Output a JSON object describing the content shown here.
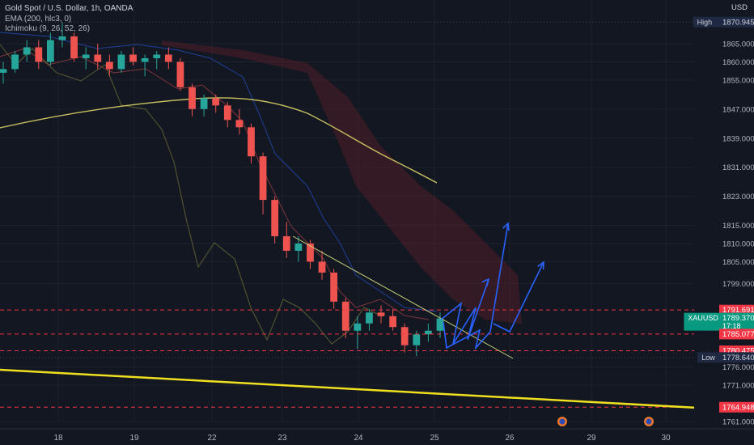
{
  "legend": {
    "symbol": "Gold Spot / U.S. Dollar, 1h, OANDA",
    "ema": "EMA (200, hlc3, 0)",
    "ichimoku": "Ichimoku (9, 26, 52, 26)"
  },
  "price_axis": {
    "unit": "USD",
    "ticks": [
      "1865.000",
      "1860.000",
      "1855.000",
      "1847.000",
      "1839.000",
      "1831.000",
      "1823.000",
      "1815.000",
      "1810.000",
      "1805.000",
      "1799.000",
      "1776.000",
      "1771.000",
      "1761.000"
    ]
  },
  "badges": [
    {
      "name": "high-label",
      "label": "High",
      "value": "1870.945",
      "color": "#1f2943",
      "text": "#d1d4dc"
    },
    {
      "name": "resistance-label",
      "label": "",
      "value": "1791.691",
      "color": "#f23645",
      "text": "#ffffff"
    },
    {
      "name": "symbol-price-label",
      "label": "XAUUSD",
      "value": "1789.370",
      "sub": "17:18",
      "color": "#089981",
      "text": "#ffffff"
    },
    {
      "name": "level-label",
      "label": "",
      "value": "1785.077",
      "color": "#f23645",
      "text": "#ffffff"
    },
    {
      "name": "support-label",
      "label": "",
      "value": "1780.475",
      "color": "#f23645",
      "text": "#ffffff"
    },
    {
      "name": "low-label",
      "label": "Low",
      "value": "1778.640",
      "color": "#1f2943",
      "text": "#d1d4dc"
    },
    {
      "name": "bottom-level-label",
      "label": "",
      "value": "1764.948",
      "color": "#f23645",
      "text": "#ffffff"
    }
  ],
  "time_axis": [
    "18",
    "19",
    "22",
    "23",
    "24",
    "25",
    "26",
    "29",
    "30"
  ],
  "colors": {
    "background": "#131722",
    "up": "#26a69a",
    "down": "#ef5350",
    "ema": "#c8c060",
    "trendline": "#f0e020",
    "projection": "#2962ff",
    "level": "#f23645",
    "cloud": "#5a1f28"
  },
  "chart_data": {
    "type": "candlestick",
    "title": "Gold Spot / U.S. Dollar, 1h, OANDA",
    "y_unit": "USD",
    "ylim": [
      1758,
      1878
    ],
    "x_ticks": [
      "18",
      "19",
      "22",
      "23",
      "24",
      "25",
      "26",
      "29",
      "30"
    ],
    "ohlc_approx": [
      [
        1857,
        1860,
        1854,
        1858
      ],
      [
        1858,
        1863,
        1857,
        1862
      ],
      [
        1862,
        1866,
        1860,
        1864
      ],
      [
        1864,
        1866,
        1858,
        1860
      ],
      [
        1860,
        1868,
        1859,
        1866
      ],
      [
        1866,
        1870.9,
        1864,
        1867
      ],
      [
        1867,
        1868,
        1860,
        1861
      ],
      [
        1861,
        1864,
        1858,
        1862
      ],
      [
        1862,
        1865,
        1858,
        1860
      ],
      [
        1860,
        1862,
        1856,
        1858
      ],
      [
        1858,
        1863,
        1857,
        1862
      ],
      [
        1862,
        1864,
        1859,
        1860
      ],
      [
        1860,
        1862,
        1856,
        1861
      ],
      [
        1861,
        1863,
        1858,
        1862
      ],
      [
        1862,
        1864,
        1858,
        1860
      ],
      [
        1860,
        1861,
        1852,
        1853
      ],
      [
        1853,
        1854,
        1845,
        1847
      ],
      [
        1847,
        1851,
        1845,
        1850
      ],
      [
        1850,
        1851,
        1846,
        1848
      ],
      [
        1848,
        1849,
        1842,
        1844
      ],
      [
        1844,
        1847,
        1840,
        1842
      ],
      [
        1842,
        1843,
        1832,
        1834
      ],
      [
        1834,
        1835,
        1818,
        1822
      ],
      [
        1822,
        1823,
        1810,
        1812
      ],
      [
        1812,
        1816,
        1806,
        1808
      ],
      [
        1808,
        1812,
        1805,
        1810
      ],
      [
        1810,
        1811,
        1803,
        1805
      ],
      [
        1805,
        1808,
        1800,
        1802
      ],
      [
        1802,
        1803,
        1792,
        1794
      ],
      [
        1794,
        1795,
        1784,
        1786
      ],
      [
        1786,
        1790,
        1781,
        1788
      ],
      [
        1788,
        1792,
        1786,
        1791
      ],
      [
        1791,
        1793,
        1788,
        1790
      ],
      [
        1790,
        1792,
        1786,
        1787
      ],
      [
        1787,
        1788,
        1780,
        1782
      ],
      [
        1782,
        1786,
        1779,
        1785
      ],
      [
        1785,
        1788,
        1783,
        1786
      ],
      [
        1786,
        1791,
        1784,
        1789.37
      ]
    ],
    "ema200": [
      1843,
      1846,
      1849,
      1848,
      1842,
      1828
    ],
    "levels": [
      1791.691,
      1785.077,
      1780.475,
      1764.948
    ],
    "high": 1870.945,
    "low": 1778.64,
    "last": 1789.37,
    "trendline_long": [
      [
        0,
        1775.5
      ],
      [
        97,
        1763
      ]
    ],
    "descending_trendline": [
      [
        1812,
        1779
      ]
    ],
    "projections": [
      "bullish zig-zag arrows toward 1815 and 1806"
    ]
  }
}
